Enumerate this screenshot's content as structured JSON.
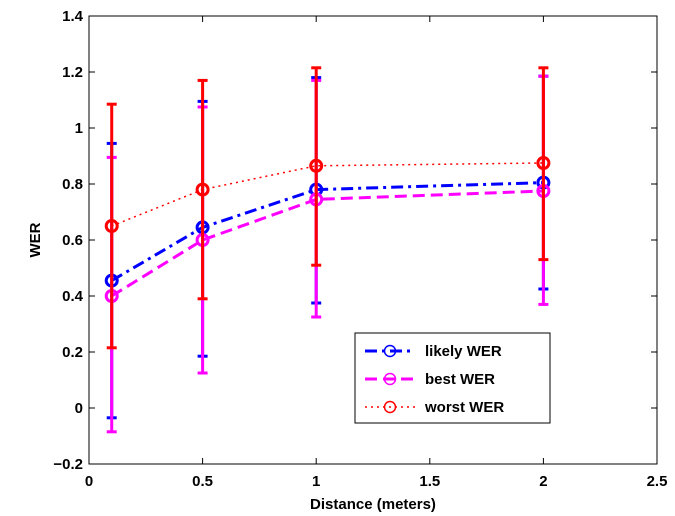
{
  "chart_data": {
    "type": "line",
    "title": "",
    "xlabel": "Distance (meters)",
    "ylabel": "WER",
    "xlim": [
      0,
      2.5
    ],
    "ylim": [
      -0.2,
      1.4
    ],
    "xticks": [
      0,
      0.5,
      1,
      1.5,
      2,
      2.5
    ],
    "xtick_labels": [
      "0",
      "0.5",
      "1",
      "1.5",
      "2",
      "2.5"
    ],
    "yticks": [
      -0.2,
      0,
      0.2,
      0.4,
      0.6,
      0.8,
      1,
      1.2,
      1.4
    ],
    "ytick_labels": [
      "−0.2",
      "0",
      "0.2",
      "0.4",
      "0.6",
      "0.8",
      "1",
      "1.2",
      "1.4"
    ],
    "grid": false,
    "legend_position": "bottom-right",
    "x": [
      0.1,
      0.5,
      1,
      2
    ],
    "series": [
      {
        "name": "likely WER",
        "color": "#0000ff",
        "marker": "circle",
        "line_style": "dash-dot",
        "values": [
          0.455,
          0.645,
          0.78,
          0.805
        ],
        "error_low": [
          -0.035,
          0.185,
          0.375,
          0.425
        ],
        "error_high": [
          0.945,
          1.095,
          1.18,
          1.185
        ]
      },
      {
        "name": "best WER",
        "color": "#ff00ff",
        "marker": "circle",
        "line_style": "dashed",
        "values": [
          0.4,
          0.6,
          0.745,
          0.775
        ],
        "error_low": [
          -0.085,
          0.125,
          0.325,
          0.37
        ],
        "error_high": [
          0.895,
          1.075,
          1.17,
          1.185
        ]
      },
      {
        "name": "worst WER",
        "color": "#ff0000",
        "marker": "circle",
        "line_style": "dotted",
        "values": [
          0.65,
          0.78,
          0.865,
          0.875
        ],
        "error_low": [
          0.215,
          0.39,
          0.51,
          0.53
        ],
        "error_high": [
          1.085,
          1.17,
          1.215,
          1.215
        ]
      }
    ]
  }
}
